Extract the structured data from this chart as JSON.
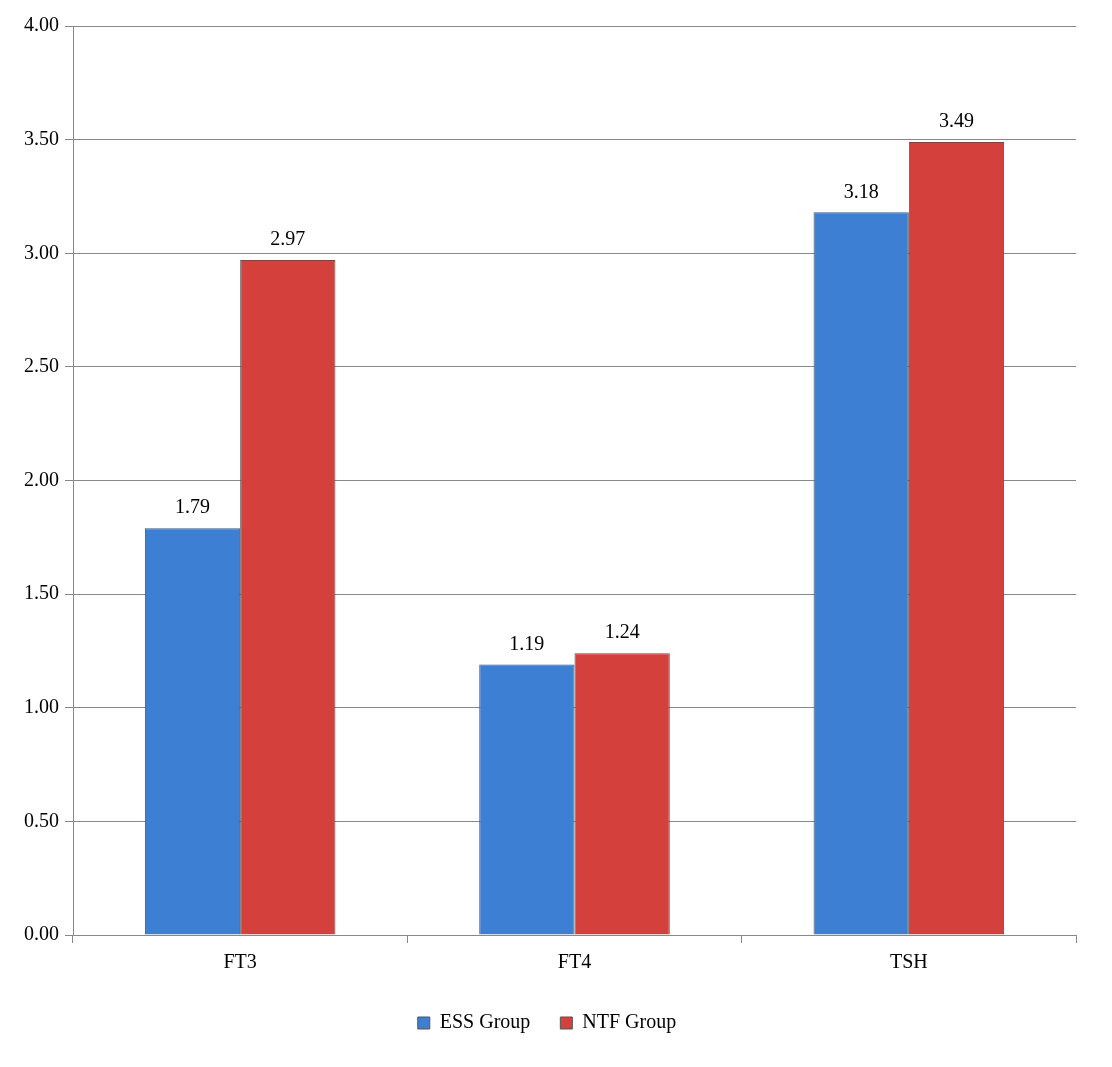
{
  "chart_data": {
    "type": "bar",
    "categories": [
      "FT3",
      "FT4",
      "TSH"
    ],
    "series": [
      {
        "name": "ESS Group",
        "color": "#3d7fd3",
        "values": [
          1.79,
          1.19,
          3.18
        ]
      },
      {
        "name": "NTF Group",
        "color": "#d4413d",
        "values": [
          2.97,
          1.24,
          3.49
        ]
      }
    ],
    "ylim": [
      0,
      4
    ],
    "yticks": [
      {
        "value": 0,
        "label": "0.00"
      },
      {
        "value": 0.5,
        "label": "0.50"
      },
      {
        "value": 1,
        "label": "1.00"
      },
      {
        "value": 1.5,
        "label": "1.50"
      },
      {
        "value": 2,
        "label": "2.00"
      },
      {
        "value": 2.5,
        "label": "2.50"
      },
      {
        "value": 3,
        "label": "3.00"
      },
      {
        "value": 3.5,
        "label": "3.50"
      },
      {
        "value": 4,
        "label": "4.00"
      }
    ],
    "grid": "y",
    "legend": "bottom",
    "data_labels": true
  }
}
